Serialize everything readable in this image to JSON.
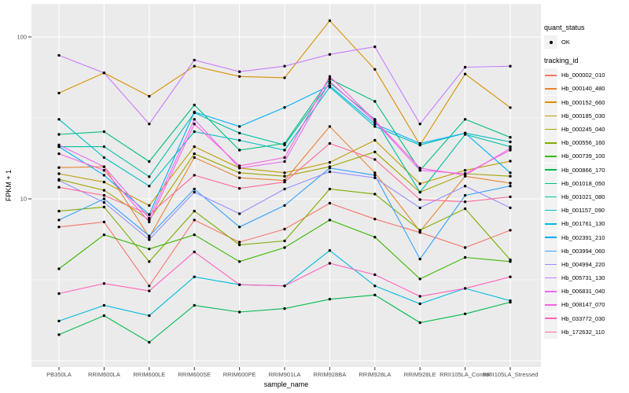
{
  "chart_data": {
    "type": "line",
    "title": "",
    "xlabel": "sample_name",
    "ylabel": "FPKM + 1",
    "y_scale": "log10",
    "ylim": [
      0.92,
      160
    ],
    "y_ticks": [
      100,
      10
    ],
    "y_gridlines_major": [
      1,
      10,
      100
    ],
    "y_gridlines_minor": [
      3.162,
      31.62
    ],
    "grid": "on",
    "legend_position": "right",
    "point_color": "#000000",
    "panel_bg": "#EBEBEB",
    "grid_color": "#FFFFFF",
    "tick_label_color": "#4D4D4D",
    "x_categories": [
      "PB350LA",
      "RRIM600LA",
      "RRIM600LE",
      "RRIM600SE",
      "RRIM600PE",
      "RRIM901LA",
      "RRIM928BA",
      "RRIM928LA",
      "RRIM928LE",
      "RRII105LA_Control",
      "RRII105LA_Stressed"
    ],
    "series": [
      {
        "name": "Hb_000002_010",
        "color": "#F8766D",
        "values": [
          6.7,
          7.2,
          2.9,
          7.4,
          5.4,
          6.5,
          9.4,
          7.5,
          6.2,
          5.0,
          6.4
        ]
      },
      {
        "name": "Hb_000140_480",
        "color": "#EA8331",
        "values": [
          15.6,
          15.8,
          5.8,
          18,
          13.5,
          13,
          28,
          14.5,
          6.3,
          13.8,
          12.5
        ]
      },
      {
        "name": "Hb_000152_660",
        "color": "#D89000",
        "values": [
          45,
          60,
          43,
          66,
          57,
          56,
          126,
          63,
          21.5,
          59,
          36.6
        ]
      },
      {
        "name": "Hb_000185_030",
        "color": "#C09B00",
        "values": [
          14.3,
          12.7,
          9.1,
          21,
          15.5,
          14.5,
          16.8,
          23,
          12.4,
          15,
          17.1
        ]
      },
      {
        "name": "Hb_000245_040",
        "color": "#A3A500",
        "values": [
          13.2,
          11.3,
          7.4,
          19,
          14.5,
          13.8,
          15.8,
          19.5,
          11,
          14.3,
          13.8
        ]
      },
      {
        "name": "Hb_000556_160",
        "color": "#7CAE00",
        "values": [
          8.4,
          8.9,
          4.1,
          8.4,
          5.2,
          5.5,
          11.5,
          10.7,
          6.4,
          8.7,
          4.2
        ]
      },
      {
        "name": "Hb_000739_100",
        "color": "#39B600",
        "values": [
          3.7,
          6.0,
          4.9,
          6.0,
          4.1,
          5.0,
          7.4,
          5.8,
          3.2,
          4.35,
          4.1
        ]
      },
      {
        "name": "Hb_000866_170",
        "color": "#00BB4E",
        "values": [
          1.45,
          1.9,
          1.3,
          2.2,
          2.0,
          2.1,
          2.4,
          2.55,
          1.72,
          1.95,
          2.3
        ]
      },
      {
        "name": "Hb_001018_050",
        "color": "#00BF7D",
        "values": [
          25,
          26,
          17,
          38,
          20,
          22,
          55,
          40,
          15,
          31,
          24
        ]
      },
      {
        "name": "Hb_001021_080",
        "color": "#00C1A3",
        "values": [
          21,
          21,
          13.7,
          34,
          25.5,
          21.5,
          52,
          31,
          11,
          25,
          21
        ]
      },
      {
        "name": "Hb_001157_090",
        "color": "#00BFC4",
        "values": [
          31,
          18,
          12,
          26,
          23,
          20,
          49,
          28,
          21.5,
          25.5,
          22.5
        ]
      },
      {
        "name": "Hb_001761_130",
        "color": "#00BAE0",
        "values": [
          1.76,
          2.2,
          1.9,
          3.3,
          2.95,
          2.9,
          4.8,
          2.9,
          2.25,
          2.8,
          2.35
        ]
      },
      {
        "name": "Hb_002391_210",
        "color": "#00B0F6",
        "values": [
          21,
          14,
          8,
          34.4,
          28,
          36.7,
          50,
          29,
          22,
          25.5,
          14.5
        ]
      },
      {
        "name": "Hb_003994_060",
        "color": "#35A2FF",
        "values": [
          7.4,
          10,
          5.9,
          11.5,
          6.7,
          9.1,
          15.5,
          14,
          4.25,
          10.5,
          12
        ]
      },
      {
        "name": "Hb_004994_220",
        "color": "#9590FF",
        "values": [
          13,
          9.5,
          5.6,
          11,
          8.1,
          11.5,
          14.7,
          13.5,
          8.8,
          12,
          8.8
        ]
      },
      {
        "name": "Hb_005731_130",
        "color": "#C77CFF",
        "values": [
          77,
          60,
          29,
          72,
          61,
          66,
          78,
          87,
          29,
          65,
          66
        ]
      },
      {
        "name": "Hb_006831_040",
        "color": "#E76BF3",
        "values": [
          21.5,
          15.8,
          7.6,
          31,
          15.5,
          17,
          53,
          30,
          15,
          14.3,
          20
        ]
      },
      {
        "name": "Hb_008147_070",
        "color": "#FA62DB",
        "values": [
          19,
          15,
          7.2,
          29,
          16,
          18,
          57,
          30.5,
          15.5,
          14,
          20.5
        ]
      },
      {
        "name": "Hb_033772_030",
        "color": "#FF62BC",
        "values": [
          2.6,
          3.0,
          2.7,
          4.7,
          2.95,
          2.9,
          4.0,
          3.4,
          2.5,
          2.8,
          3.3
        ]
      },
      {
        "name": "Hb_172632_110",
        "color": "#FF6A98",
        "values": [
          11.8,
          10.5,
          8,
          14,
          11.6,
          12.7,
          22,
          17.5,
          9.9,
          9.6,
          10.3
        ]
      }
    ]
  },
  "legend": {
    "quant_status_title": "quant_status",
    "quant_status_items": [
      {
        "label": "OK",
        "marker": "point-icon"
      }
    ],
    "tracking_id_title": "tracking_id"
  }
}
